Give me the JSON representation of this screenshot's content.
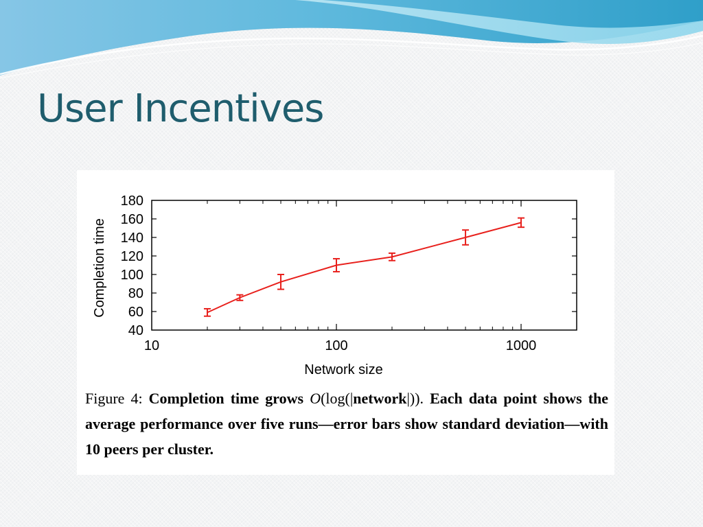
{
  "slide": {
    "title": "User Incentives"
  },
  "colors": {
    "title": "#1f5d6d",
    "series_line": "#e8201c",
    "swoosh_dark": "#3aa6c9",
    "swoosh_light": "#9fdcee"
  },
  "caption": {
    "figure_label": "Figure 4:",
    "bold_lead": "Completion time grows",
    "math_o": "O",
    "math_log_open": "(log(|",
    "math_network": "network",
    "math_close": "|)).",
    "bold_rest": "Each data point shows the average performance over five runs—error bars show standard deviation—with 10 peers per cluster."
  },
  "chart_data": {
    "type": "line",
    "title": "",
    "xlabel": "Network size",
    "ylabel": "Completion time",
    "xscale": "log",
    "xlim": [
      10,
      2000
    ],
    "ylim": [
      40,
      180
    ],
    "xticks": [
      10,
      100,
      1000
    ],
    "xtick_labels": [
      "10",
      "100",
      "1000"
    ],
    "yticks": [
      40,
      60,
      80,
      100,
      120,
      140,
      160,
      180
    ],
    "ytick_labels": [
      "40",
      "60",
      "80",
      "100",
      "120",
      "140",
      "160",
      "180"
    ],
    "grid": false,
    "legend": "none",
    "series": [
      {
        "color": "#e8201c",
        "x": [
          20,
          30,
          50,
          100,
          200,
          500,
          1000
        ],
        "y": [
          59,
          75,
          92,
          110,
          119,
          140,
          156
        ],
        "error": [
          4,
          3,
          8,
          7,
          4,
          8,
          5
        ]
      }
    ]
  }
}
